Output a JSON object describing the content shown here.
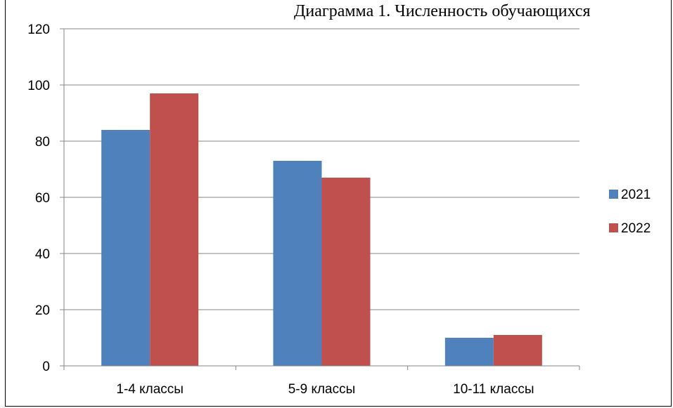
{
  "chart_data": {
    "type": "bar",
    "title": "Диаграмма 1. Численность обучающихся",
    "categories": [
      "1-4 классы",
      "5-9 классы",
      "10-11 классы"
    ],
    "series": [
      {
        "name": "2021",
        "values": [
          84,
          73,
          10
        ],
        "color": "#4F81BD"
      },
      {
        "name": "2022",
        "values": [
          97,
          67,
          11
        ],
        "color": "#C0504D"
      }
    ],
    "ylim": [
      0,
      120
    ],
    "yticks": [
      0,
      20,
      40,
      60,
      80,
      100,
      120
    ],
    "grid": true,
    "legend_position": "right"
  }
}
